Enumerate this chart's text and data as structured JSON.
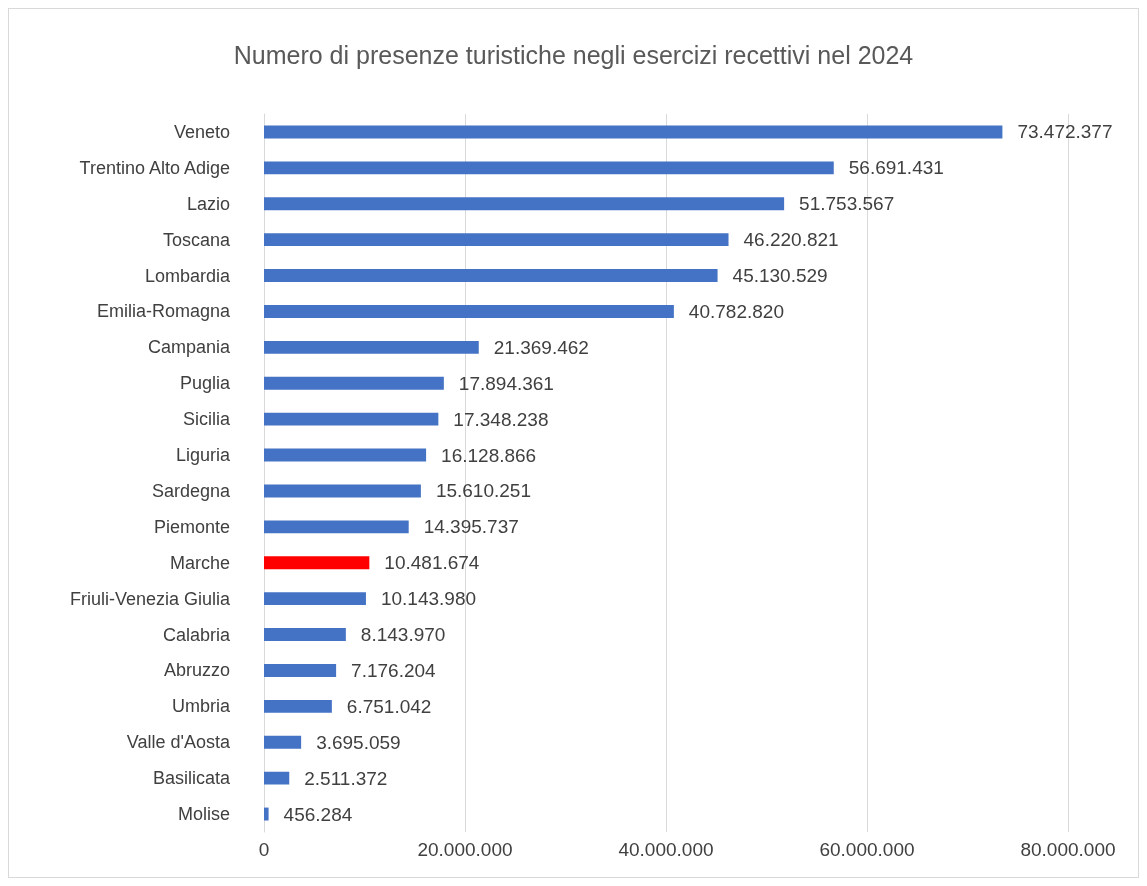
{
  "chart_data": {
    "type": "bar",
    "orientation": "horizontal",
    "title": "Numero di presenze turistiche negli esercizi recettivi nel 2024",
    "categories": [
      "Veneto",
      "Trentino Alto Adige",
      "Lazio",
      "Toscana",
      "Lombardia",
      "Emilia-Romagna",
      "Campania",
      "Puglia",
      "Sicilia",
      "Liguria",
      "Sardegna",
      "Piemonte",
      "Marche",
      "Friuli-Venezia Giulia",
      "Calabria",
      "Abruzzo",
      "Umbria",
      "Valle d'Aosta",
      "Basilicata",
      "Molise"
    ],
    "values": [
      73472377,
      56691431,
      51753567,
      46220821,
      45130529,
      40782820,
      21369462,
      17894361,
      17348238,
      16128866,
      15610251,
      14395737,
      10481674,
      10143980,
      8143970,
      7176204,
      6751042,
      3695059,
      2511372,
      456284
    ],
    "value_labels": [
      "73.472.377",
      "56.691.431",
      "51.753.567",
      "46.220.821",
      "45.130.529",
      "40.782.820",
      "21.369.462",
      "17.894.361",
      "17.348.238",
      "16.128.866",
      "15.610.251",
      "14.395.737",
      "10.481.674",
      "10.143.980",
      "8.143.970",
      "7.176.204",
      "6.751.042",
      "3.695.059",
      "2.511.372",
      "456.284"
    ],
    "colors": [
      "#4472c4",
      "#4472c4",
      "#4472c4",
      "#4472c4",
      "#4472c4",
      "#4472c4",
      "#4472c4",
      "#4472c4",
      "#4472c4",
      "#4472c4",
      "#4472c4",
      "#4472c4",
      "#ff0000",
      "#4472c4",
      "#4472c4",
      "#4472c4",
      "#4472c4",
      "#4472c4",
      "#4472c4",
      "#4472c4"
    ],
    "xlim": [
      0,
      80000000
    ],
    "xticks": [
      0,
      {
        "value": 20000000,
        "label": "20.000.000"
      },
      {
        "value": 40000000,
        "label": "40.000.000"
      },
      {
        "value": 60000000,
        "label": "60.000.000"
      },
      {
        "value": 80000000,
        "label": "80.000.000"
      }
    ],
    "grid": "x"
  }
}
